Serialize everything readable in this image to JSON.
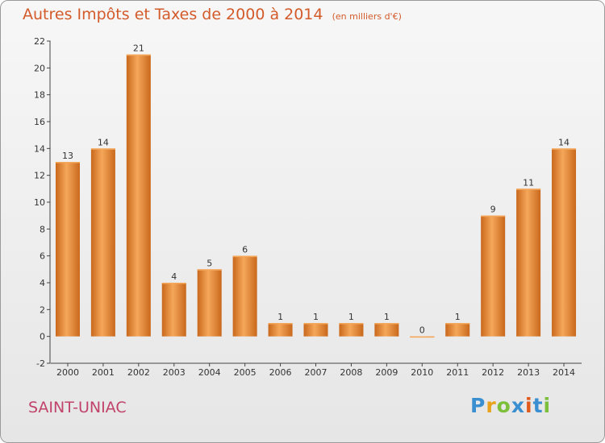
{
  "title": {
    "main": "Autres Impôts et Taxes de 2000 à 2014",
    "unit": "(en milliers d'€)"
  },
  "commune": "SAINT-UNIAC",
  "logo": {
    "text": "Proxiti",
    "letters": [
      "P",
      "r",
      "o",
      "x",
      "i",
      "t",
      "i"
    ]
  },
  "colors": {
    "title": "#d35a2a",
    "commune": "#c1436b",
    "bar_light": "#f5a75a",
    "bar_dark": "#c9681c"
  },
  "chart_data": {
    "type": "bar",
    "categories": [
      "2000",
      "2001",
      "2002",
      "2003",
      "2004",
      "2005",
      "2006",
      "2007",
      "2008",
      "2009",
      "2010",
      "2011",
      "2012",
      "2013",
      "2014"
    ],
    "values": [
      13,
      14,
      21,
      4,
      5,
      6,
      1,
      1,
      1,
      1,
      0,
      1,
      9,
      11,
      14
    ],
    "data_labels": [
      "13",
      "14",
      "21",
      "4",
      "5",
      "6",
      "1",
      "1",
      "1",
      "1",
      "0",
      "1",
      "9",
      "11",
      "14"
    ],
    "y_ticks": [
      -2,
      0,
      2,
      4,
      6,
      8,
      10,
      12,
      14,
      16,
      18,
      20,
      22
    ],
    "ylim": [
      -2,
      22
    ],
    "grid": false,
    "legend": "none"
  }
}
